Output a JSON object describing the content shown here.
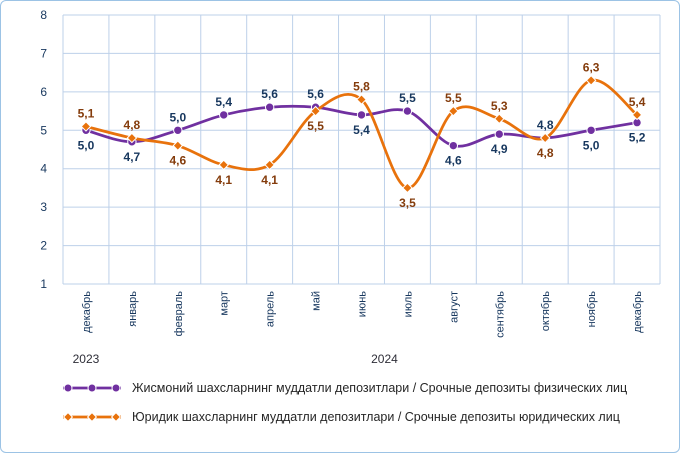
{
  "chart_data": {
    "type": "line",
    "title": "",
    "categories": [
      "декабрь",
      "январь",
      "февраль",
      "март",
      "апрель",
      "май",
      "июнь",
      "июль",
      "август",
      "сентябрь",
      "октябрь",
      "ноябрь",
      "декабрь"
    ],
    "year_groups": [
      {
        "label": "2023",
        "from": 0,
        "to": 0
      },
      {
        "label": "2024",
        "from": 1,
        "to": 12
      }
    ],
    "ylim": [
      1,
      8
    ],
    "yticks": [
      1,
      2,
      3,
      4,
      5,
      6,
      7,
      8
    ],
    "grid": true,
    "legend_position": "bottom",
    "series": [
      {
        "name": "Жисмоний шахсларнинг  муддатли  депозитлари / Срочные депозиты физических лиц",
        "marker": "circle",
        "color": "#7030A0",
        "label_color": "#17375E",
        "values": [
          5.0,
          4.7,
          5.0,
          5.4,
          5.6,
          5.6,
          5.4,
          5.5,
          4.6,
          4.9,
          4.8,
          5.0,
          5.2
        ],
        "labels": [
          "5,0",
          "4,7",
          "5,0",
          "5,4",
          "5,6",
          "5,6",
          "5,4",
          "5,5",
          "4,6",
          "4,9",
          "4,8",
          "5,0",
          "5,2"
        ]
      },
      {
        "name": "Юридик шахсларнинг  муддатли  депозитлари / Срочные депозиты юридических лиц",
        "marker": "diamond",
        "color": "#E8720C",
        "label_color": "#843C0C",
        "values": [
          5.1,
          4.8,
          4.6,
          4.1,
          4.1,
          5.5,
          5.8,
          3.5,
          5.5,
          5.3,
          4.8,
          6.3,
          5.4
        ],
        "labels": [
          "5,1",
          "4,8",
          "4,6",
          "4,1",
          "4,1",
          "5,5",
          "5,8",
          "3,5",
          "5,5",
          "5,3",
          "4,8",
          "6,3",
          "5,4"
        ]
      }
    ],
    "colors": {
      "grid": "#BDD0E9",
      "axis_text": "#17375E",
      "border": "#9CC3E5"
    }
  }
}
